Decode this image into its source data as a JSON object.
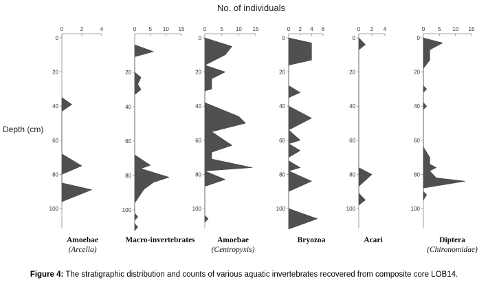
{
  "title": "No. of individuals",
  "ylabel": "Depth (cm)",
  "caption": {
    "label": "Figure 4:",
    "text": " The stratigraphic distribution and counts of various aquatic invertebrates recovered from composite core LOB14."
  },
  "chart_data": [
    {
      "type": "area",
      "name_line1": "Amoebae",
      "name_line2": "Arcella",
      "xticks": [
        0,
        2,
        4
      ],
      "xlim": [
        0,
        4
      ],
      "yticks": [
        0,
        20,
        40,
        60,
        80,
        100
      ],
      "ylim": [
        0,
        110
      ],
      "points": [
        [
          0,
          35
        ],
        [
          1,
          39
        ],
        [
          0,
          43
        ],
        [
          0,
          68
        ],
        [
          2,
          75
        ],
        [
          0,
          80
        ],
        [
          0,
          85
        ],
        [
          3,
          89
        ],
        [
          0,
          96
        ]
      ]
    },
    {
      "type": "area",
      "name_line1": "Macro-invertebrates",
      "name_line2": "",
      "xticks": [
        0,
        5,
        10,
        15
      ],
      "xlim": [
        0,
        15
      ],
      "yticks": [
        20,
        40,
        60,
        80,
        100
      ],
      "ylim": [
        0,
        110
      ],
      "points": [
        [
          0,
          4
        ],
        [
          6,
          8
        ],
        [
          0,
          11
        ],
        [
          0,
          20
        ],
        [
          2,
          23
        ],
        [
          1,
          27
        ],
        [
          2,
          30
        ],
        [
          0,
          33
        ],
        [
          0,
          68
        ],
        [
          5,
          74
        ],
        [
          2,
          76
        ],
        [
          11,
          81
        ],
        [
          6,
          84
        ],
        [
          3,
          88
        ],
        [
          0,
          96
        ],
        [
          0,
          102
        ],
        [
          1,
          104
        ],
        [
          0,
          106
        ],
        [
          0,
          108
        ],
        [
          1,
          110
        ],
        [
          0,
          112
        ]
      ]
    },
    {
      "type": "area",
      "name_line1": "Amoebae",
      "name_line2": "Centropyxis",
      "xticks": [
        0,
        5,
        10,
        15
      ],
      "xlim": [
        0,
        15
      ],
      "yticks": [
        0,
        20,
        40,
        60,
        80,
        100
      ],
      "ylim": [
        0,
        110
      ],
      "points": [
        [
          0,
          0
        ],
        [
          8,
          5
        ],
        [
          6,
          10
        ],
        [
          0,
          16
        ],
        [
          6,
          20
        ],
        [
          2,
          24
        ],
        [
          2,
          30
        ],
        [
          0,
          31
        ],
        [
          0,
          38
        ],
        [
          10,
          46
        ],
        [
          12,
          50
        ],
        [
          2,
          55
        ],
        [
          8,
          63
        ],
        [
          2,
          67
        ],
        [
          2,
          71
        ],
        [
          14,
          76
        ],
        [
          0,
          78
        ],
        [
          6,
          83
        ],
        [
          0,
          87
        ],
        [
          0,
          104
        ],
        [
          1,
          106
        ],
        [
          0,
          108
        ]
      ]
    },
    {
      "type": "area",
      "name_line1": "Bryozoa",
      "name_line2": "",
      "xticks": [
        0,
        2,
        4,
        6
      ],
      "xlim": [
        0,
        6
      ],
      "yticks": [
        0,
        20,
        40,
        60,
        80,
        100
      ],
      "ylim": [
        0,
        110
      ],
      "points": [
        [
          0,
          0
        ],
        [
          4,
          3
        ],
        [
          4,
          13
        ],
        [
          0,
          16
        ],
        [
          0,
          28
        ],
        [
          2,
          32
        ],
        [
          0,
          35
        ],
        [
          0,
          40
        ],
        [
          4,
          47
        ],
        [
          0,
          54
        ],
        [
          2,
          60
        ],
        [
          0,
          62
        ],
        [
          2,
          66
        ],
        [
          0,
          70
        ],
        [
          0,
          72
        ],
        [
          2,
          76
        ],
        [
          0,
          78
        ],
        [
          4,
          84
        ],
        [
          0,
          90
        ],
        [
          0,
          100
        ],
        [
          5,
          106
        ],
        [
          0,
          112
        ]
      ]
    },
    {
      "type": "area",
      "name_line1": "Acari",
      "name_line2": "",
      "xticks": [
        0,
        2,
        4
      ],
      "xlim": [
        0,
        4
      ],
      "yticks": [
        0,
        20,
        40,
        60,
        80,
        100
      ],
      "ylim": [
        0,
        110
      ],
      "points": [
        [
          0,
          0
        ],
        [
          1,
          4
        ],
        [
          0,
          7
        ],
        [
          0,
          76
        ],
        [
          2,
          80
        ],
        [
          0,
          87
        ],
        [
          0,
          91
        ],
        [
          1,
          95
        ],
        [
          0,
          98
        ]
      ]
    },
    {
      "type": "area",
      "name_line1": "Diptera",
      "name_line2": "Chironomidae",
      "xticks": [
        0,
        5,
        10,
        15
      ],
      "xlim": [
        0,
        15
      ],
      "yticks": [
        0,
        20,
        40,
        60,
        80,
        100
      ],
      "ylim": [
        0,
        110
      ],
      "points": [
        [
          0,
          0
        ],
        [
          6,
          3
        ],
        [
          2,
          7
        ],
        [
          2,
          13
        ],
        [
          0,
          18
        ],
        [
          0,
          28
        ],
        [
          1,
          30
        ],
        [
          0,
          32
        ],
        [
          0,
          38
        ],
        [
          1,
          40
        ],
        [
          0,
          42
        ],
        [
          0,
          64
        ],
        [
          2,
          70
        ],
        [
          2,
          74
        ],
        [
          4,
          76
        ],
        [
          2,
          78
        ],
        [
          4,
          82
        ],
        [
          13,
          84
        ],
        [
          0,
          88
        ],
        [
          0,
          90
        ],
        [
          1,
          92
        ],
        [
          0,
          95
        ]
      ]
    }
  ]
}
